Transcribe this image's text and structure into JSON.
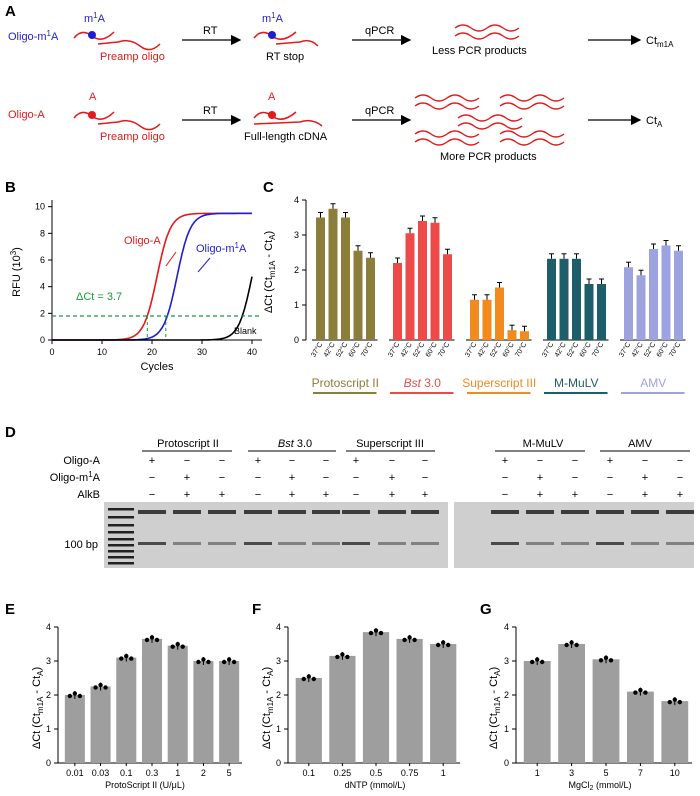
{
  "panel_labels": [
    "A",
    "B",
    "C",
    "D",
    "E",
    "F",
    "G"
  ],
  "panelA": {
    "row1": {
      "oligo": "Oligo-m",
      "oligo_sup": "1",
      "oligo_tail": "A",
      "mod": "m",
      "mod_sup": "1",
      "mod_tail": "A",
      "preamp": "Preamp oligo",
      "step1": "RT",
      "mid_label": "RT stop",
      "step2": "qPCR",
      "product": "Less PCR products",
      "ct_main": "Ct",
      "ct_sub": "m1A"
    },
    "row2": {
      "oligo": "Oligo-A",
      "mod": "A",
      "preamp": "Preamp oligo",
      "step1": "RT",
      "mid_label": "Full-length cDNA",
      "step2": "qPCR",
      "product": "More PCR products",
      "ct_main": "Ct",
      "ct_sub": "A"
    }
  },
  "panelB": {
    "ylabel_main": "RFU (10",
    "ylabel_sup": "3",
    "ylabel_end": ")",
    "xlabel": "Cycles",
    "label_oligoA": "Oligo-A",
    "label_oligom1A_main": "Oligo-m",
    "label_oligom1A_sup": "1",
    "label_oligom1A_end": "A",
    "delta_ct": "ΔCt = 3.7",
    "blank": "Blank",
    "xticks": [
      "0",
      "10",
      "20",
      "30",
      "40"
    ],
    "yticks": [
      "0",
      "2",
      "4",
      "6",
      "8",
      "10"
    ],
    "colors": {
      "oligoA": "#e31a1c",
      "oligom1A": "#1f1fd0",
      "blank": "#000000",
      "threshold": "#1a9a3a"
    }
  },
  "chart_data": [
    {
      "type": "line",
      "panel": "B",
      "xlabel": "Cycles",
      "ylabel": "RFU (10^3)",
      "xlim": [
        0,
        42
      ],
      "ylim": [
        0,
        10.5
      ],
      "series": [
        {
          "name": "Oligo-A",
          "midpoint": 21,
          "plateau": 9.5
        },
        {
          "name": "Oligo-m1A",
          "midpoint": 25,
          "plateau": 9.5
        },
        {
          "name": "Blank",
          "midpoint": 40,
          "plateau": 9.5
        }
      ],
      "threshold": 1.8,
      "delta_ct": 3.7
    },
    {
      "type": "bar",
      "panel": "C",
      "ylabel": "ΔCt (Ct_m1A - Ct_A)",
      "ylim": [
        0,
        4
      ],
      "yticks": [
        "0",
        "1",
        "2",
        "3",
        "4"
      ],
      "groups": [
        {
          "name": "Protoscript II",
          "color": "#8b7d3a",
          "temps": [
            "37°C",
            "42°C",
            "52°C",
            "60°C",
            "70°C"
          ],
          "values": [
            3.5,
            3.75,
            3.5,
            2.55,
            2.35
          ]
        },
        {
          "name": "Bst 3.0",
          "name_italic": "Bst",
          "name_rest": " 3.0",
          "color": "#ef4a4a",
          "temps": [
            "37°C",
            "42°C",
            "52°C",
            "60°C",
            "70°C"
          ],
          "values": [
            2.2,
            3.05,
            3.4,
            3.35,
            2.45
          ]
        },
        {
          "name": "Superscript III",
          "color": "#f28a1e",
          "temps": [
            "37°C",
            "42°C",
            "52°C",
            "60°C",
            "70°C"
          ],
          "values": [
            1.15,
            1.15,
            1.5,
            0.28,
            0.25
          ]
        },
        {
          "name": "M-MuLV",
          "color": "#1e5d6a",
          "temps": [
            "37°C",
            "42°C",
            "52°C",
            "60°C",
            "70°C"
          ],
          "values": [
            2.32,
            2.32,
            2.32,
            1.6,
            1.6
          ]
        },
        {
          "name": "AMV",
          "color": "#9da3df",
          "temps": [
            "37°C",
            "42°C",
            "52°C",
            "60°C",
            "70°C"
          ],
          "values": [
            2.08,
            1.85,
            2.6,
            2.7,
            2.55
          ]
        }
      ]
    },
    {
      "type": "bar",
      "panel": "E",
      "xlabel": "ProtoScript II (U/μL)",
      "ylabel": "ΔCt (Ct_m1A - Ct_A)",
      "ylim": [
        0,
        4
      ],
      "categories": [
        "0.01",
        "0.03",
        "0.1",
        "0.3",
        "1",
        "2",
        "5"
      ],
      "values": [
        2.0,
        2.25,
        3.1,
        3.65,
        3.45,
        3.0,
        3.0
      ]
    },
    {
      "type": "bar",
      "panel": "F",
      "xlabel": "dNTP (mmol/L)",
      "ylabel": "ΔCt (Ct_m1A - Ct_A)",
      "ylim": [
        0,
        4
      ],
      "categories": [
        "0.1",
        "0.25",
        "0.5",
        "0.75",
        "1"
      ],
      "values": [
        2.5,
        3.15,
        3.85,
        3.65,
        3.5
      ]
    },
    {
      "type": "bar",
      "panel": "G",
      "xlabel": "MgCl2 (mmol/L)",
      "ylabel": "ΔCt (Ct_m1A - Ct_A)",
      "ylim": [
        0,
        4
      ],
      "categories": [
        "1",
        "3",
        "5",
        "7",
        "10"
      ],
      "values": [
        3.0,
        3.5,
        3.05,
        2.1,
        1.82
      ]
    }
  ],
  "panelD": {
    "enzymes": [
      "Protoscript II",
      "Bst 3.0",
      "Superscript III",
      "M-MuLV",
      "AMV"
    ],
    "row_labels": [
      "Oligo-A",
      "Oligo-m1A",
      "AlkB"
    ],
    "row_label2_main": "Oligo-m",
    "row_label2_sup": "1",
    "row_label2_end": "A",
    "signs": [
      [
        "+",
        "−",
        "−"
      ],
      [
        "−",
        "+",
        "−"
      ],
      [
        "−",
        "+",
        "+"
      ]
    ],
    "marker": "100 bp"
  },
  "axis_common": {
    "ylabel_main": "ΔCt (Ct",
    "ylabel_sub1": "m1A",
    "ylabel_mid": " - Ct",
    "ylabel_sub2": "A",
    "ylabel_end": ")",
    "yticks": [
      "0",
      "1",
      "2",
      "3",
      "4"
    ]
  },
  "panelE_x": "ProtoScript II (U/μL)",
  "panelF_x": "dNTP (mmol/L)",
  "panelG_x_main": "MgCl",
  "panelG_x_sub": "2",
  "panelG_x_end": " (mmol/L)"
}
